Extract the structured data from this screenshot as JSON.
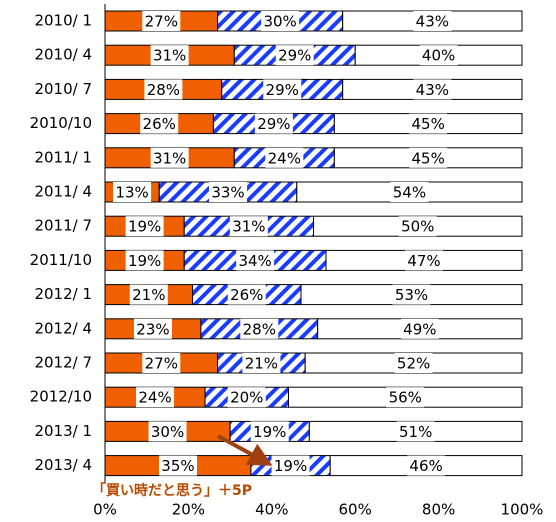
{
  "chart_data": {
    "type": "bar",
    "orientation": "horizontal",
    "stacked": true,
    "categories": [
      "2010/ 1",
      "2010/ 4",
      "2010/ 7",
      "2010/10",
      "2011/ 1",
      "2011/ 4",
      "2011/ 7",
      "2011/10",
      "2012/ 1",
      "2012/ 4",
      "2012/ 7",
      "2012/10",
      "2013/ 1",
      "2013/ 4"
    ],
    "series": [
      {
        "color": "#f06000",
        "values": [
          27,
          31,
          28,
          26,
          31,
          13,
          19,
          19,
          21,
          23,
          27,
          24,
          30,
          35
        ],
        "value_labels": [
          "27%",
          "31%",
          "28%",
          "26%",
          "31%",
          "13%",
          "19%",
          "19%",
          "21%",
          "23%",
          "27%",
          "24%",
          "30%",
          "35%"
        ]
      },
      {
        "color": "#1a3cff",
        "hatch": true,
        "values": [
          30,
          29,
          29,
          29,
          24,
          33,
          31,
          34,
          26,
          28,
          21,
          20,
          19,
          19
        ],
        "value_labels": [
          "30%",
          "29%",
          "29%",
          "29%",
          "24%",
          "33%",
          "31%",
          "34%",
          "26%",
          "28%",
          "21%",
          "20%",
          "19%",
          "19%"
        ]
      },
      {
        "color": "#ffffff",
        "values": [
          43,
          40,
          43,
          45,
          45,
          54,
          50,
          47,
          53,
          49,
          52,
          56,
          51,
          46
        ],
        "value_labels": [
          "43%",
          "40%",
          "43%",
          "45%",
          "45%",
          "54%",
          "50%",
          "47%",
          "53%",
          "49%",
          "52%",
          "56%",
          "51%",
          "46%"
        ]
      }
    ],
    "xlim": [
      0,
      100
    ],
    "xticks": [
      {
        "value": 0,
        "label": "0%"
      },
      {
        "value": 20,
        "label": "20%"
      },
      {
        "value": 40,
        "label": "40%"
      },
      {
        "value": 60,
        "label": "60%"
      },
      {
        "value": 80,
        "label": "80%"
      },
      {
        "value": 100,
        "label": "100%"
      }
    ],
    "annotation": "「買い時だと思う」＋5P"
  }
}
